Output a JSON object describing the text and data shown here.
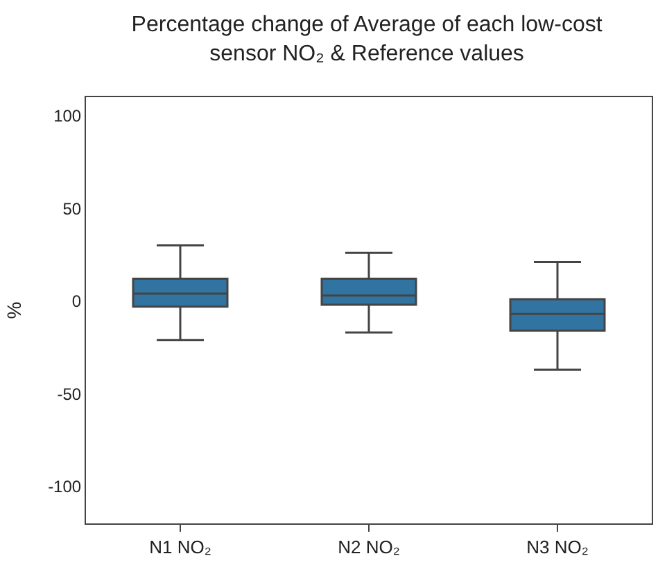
{
  "chart_data": {
    "type": "box",
    "title": "Percentage change of Average of each low-cost\nsensor NO₂ & Reference values",
    "ylabel": "%",
    "categories": [
      "N1 NO₂",
      "N2 NO₂",
      "N3 NO₂"
    ],
    "color": "#3274a1",
    "boxes": [
      {
        "low": -21,
        "q1": -3,
        "median": 4,
        "q3": 12,
        "high": 30
      },
      {
        "low": -17,
        "q1": -2,
        "median": 3,
        "q3": 12,
        "high": 26
      },
      {
        "low": -37,
        "q1": -16,
        "median": -7,
        "q3": 1,
        "high": 21
      }
    ],
    "ylim": [
      -120,
      110
    ],
    "yticks": [
      -100,
      -50,
      0,
      50,
      100
    ]
  }
}
